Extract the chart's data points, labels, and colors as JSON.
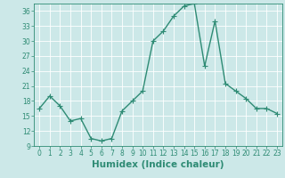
{
  "x": [
    0,
    1,
    2,
    3,
    4,
    5,
    6,
    7,
    8,
    9,
    10,
    11,
    12,
    13,
    14,
    15,
    16,
    17,
    18,
    19,
    20,
    21,
    22,
    23
  ],
  "y": [
    16.5,
    19,
    17,
    14,
    14.5,
    10.5,
    10,
    10.5,
    16,
    18,
    20,
    30,
    32,
    35,
    37,
    37.5,
    25,
    34,
    21.5,
    20,
    18.5,
    16.5,
    16.5,
    15.5
  ],
  "line_color": "#2e8b74",
  "marker": "+",
  "marker_size": 4,
  "bg_color": "#cce8e8",
  "grid_color": "#ffffff",
  "xlabel": "Humidex (Indice chaleur)",
  "xlim": [
    -0.5,
    23.5
  ],
  "ylim": [
    9,
    37.5
  ],
  "yticks": [
    9,
    12,
    15,
    18,
    21,
    24,
    27,
    30,
    33,
    36
  ],
  "xticks": [
    0,
    1,
    2,
    3,
    4,
    5,
    6,
    7,
    8,
    9,
    10,
    11,
    12,
    13,
    14,
    15,
    16,
    17,
    18,
    19,
    20,
    21,
    22,
    23
  ],
  "tick_label_size": 5.5,
  "xlabel_size": 7.5,
  "line_width": 1.0
}
